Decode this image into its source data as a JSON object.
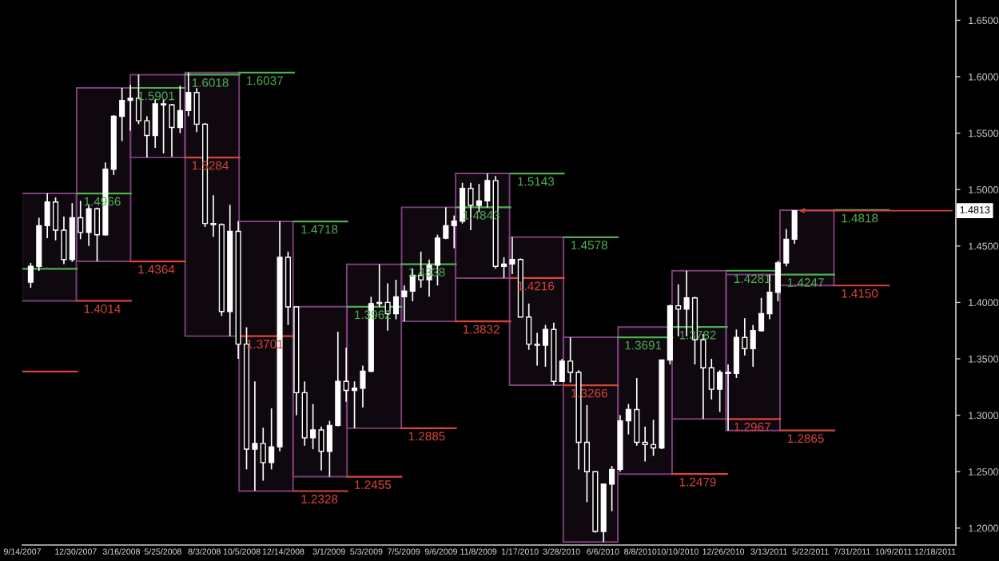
{
  "chart_data": {
    "type": "candlestick",
    "xlim": [
      "2007-10-01",
      "2012-01-22"
    ],
    "ylim": [
      1.185,
      1.668
    ],
    "xticks": [
      {
        "value": "2007-10-01",
        "label": "9/14/2007"
      },
      {
        "value": "2007-12-30",
        "label": "12/30/2007"
      },
      {
        "value": "2008-03-16",
        "label": "3/16/2008"
      },
      {
        "value": "2008-05-25",
        "label": "5/25/2008"
      },
      {
        "value": "2008-08-03",
        "label": "8/3/2008"
      },
      {
        "value": "2008-10-05",
        "label": "10/5/2008"
      },
      {
        "value": "2008-12-14",
        "label": "12/14/2008"
      },
      {
        "value": "2009-03-01",
        "label": "3/1/2009"
      },
      {
        "value": "2009-05-03",
        "label": "5/3/2009"
      },
      {
        "value": "2009-07-05",
        "label": "7/5/2009"
      },
      {
        "value": "2009-09-06",
        "label": "9/6/2009"
      },
      {
        "value": "2009-11-08",
        "label": "11/8/2009"
      },
      {
        "value": "2010-01-17",
        "label": "1/17/2010"
      },
      {
        "value": "2010-03-28",
        "label": "3/28/2010"
      },
      {
        "value": "2010-06-06",
        "label": "6/6/2010"
      },
      {
        "value": "2010-08-08",
        "label": "8/8/2010"
      },
      {
        "value": "2010-10-10",
        "label": "10/10/2010"
      },
      {
        "value": "2010-12-26",
        "label": "12/26/2010"
      },
      {
        "value": "2011-03-13",
        "label": "3/13/2011"
      },
      {
        "value": "2011-05-22",
        "label": "5/22/2011"
      },
      {
        "value": "2011-07-31",
        "label": "7/31/2011"
      },
      {
        "value": "2011-10-09",
        "label": "10/9/2011"
      },
      {
        "value": "2011-12-18",
        "label": "12/18/2011"
      }
    ],
    "yticks": [
      {
        "value": 1.2,
        "label": "1.2000"
      },
      {
        "value": 1.25,
        "label": "1.2500"
      },
      {
        "value": 1.3,
        "label": "1.3000"
      },
      {
        "value": 1.35,
        "label": "1.3500"
      },
      {
        "value": 1.4,
        "label": "1.4000"
      },
      {
        "value": 1.45,
        "label": "1.4500"
      },
      {
        "value": 1.5,
        "label": "1.5000"
      },
      {
        "value": 1.55,
        "label": "1.5500"
      },
      {
        "value": 1.6,
        "label": "1.6000"
      },
      {
        "value": 1.65,
        "label": "1.6500"
      }
    ],
    "annotations": [
      {
        "text": "1.4813",
        "x": "2011-04-25",
        "y": 1.4813
      }
    ],
    "series": [
      {
        "type": "bar",
        "color": "#7b3f7b",
        "x": [
          "2007-11-15",
          "2008-02-15",
          "2008-05-16",
          "2008-08-16",
          "2008-11-15",
          "2009-02-14",
          "2009-05-16",
          "2009-08-16",
          "2009-11-15",
          "2010-02-14",
          "2010-05-16",
          "2010-08-16",
          "2010-11-15",
          "2011-02-14",
          "2011-05-16"
        ],
        "base": [
          1.4014,
          1.4364,
          1.5284,
          1.3701,
          1.2328,
          1.2455,
          1.2885,
          1.3832,
          1.4216,
          1.3266,
          1.1876,
          1.2479,
          1.2967,
          1.2865,
          1.415
        ],
        "values": [
          0.0952,
          0.1537,
          0.0734,
          0.2336,
          0.239,
          0.1507,
          0.1453,
          0.1011,
          0.0927,
          0.1312,
          0.1815,
          0.1303,
          0.1314,
          0.1382,
          0.0668
        ]
      },
      {
        "type": "line",
        "color": "#4caf50",
        "x": [
          "2007-10-01",
          "2008-01-01",
          null,
          "2008-01-01",
          "2008-04-01",
          null,
          "2008-04-01",
          "2008-07-01",
          null,
          "2008-07-01",
          "2008-10-01",
          null,
          "2008-10-01",
          "2009-01-01",
          null,
          "2009-01-01",
          "2009-04-01",
          null,
          "2009-04-01",
          "2009-07-01",
          null,
          "2009-07-01",
          "2009-10-01",
          null,
          "2009-10-01",
          "2010-01-01",
          null,
          "2010-01-01",
          "2010-04-01",
          null,
          "2010-04-01",
          "2010-07-01",
          null,
          "2010-07-01",
          "2010-10-01",
          null,
          "2010-10-01",
          "2011-01-01",
          null,
          "2011-01-01",
          "2011-04-01",
          null,
          "2011-04-01",
          "2011-07-01",
          null,
          "2011-07-01",
          "2011-10-01"
        ],
        "values": [
          1.4297,
          1.4297,
          null,
          1.4966,
          1.4966,
          null,
          1.5901,
          1.5901,
          null,
          1.6018,
          1.6018,
          null,
          1.6037,
          1.6037,
          null,
          1.4718,
          1.4718,
          null,
          1.3962,
          1.3962,
          null,
          1.4338,
          1.4338,
          null,
          1.4843,
          1.4843,
          null,
          1.5143,
          1.5143,
          null,
          1.4578,
          1.4578,
          null,
          1.3691,
          1.3691,
          null,
          1.3782,
          1.3782,
          null,
          1.4281,
          1.4281,
          null,
          1.4247,
          1.4247,
          null,
          1.4818,
          1.4818
        ],
        "value_labels": [
          null,
          null,
          null,
          "1.4966",
          null,
          null,
          "1.5901",
          null,
          null,
          "1.6018",
          null,
          null,
          "1.6037",
          null,
          null,
          "1.4718",
          null,
          null,
          "1.3962",
          null,
          null,
          "1.4338",
          null,
          null,
          "1.4843",
          null,
          null,
          "1.5143",
          null,
          null,
          "1.4578",
          null,
          null,
          "1.3691",
          null,
          null,
          "1.3782",
          null,
          null,
          "1.4281",
          null,
          null,
          "1.4247",
          null,
          null,
          "1.4818",
          null
        ]
      },
      {
        "type": "line",
        "color": "#d9443a",
        "x": [
          "2007-10-01",
          "2008-01-01",
          null,
          "2008-01-01",
          "2008-04-01",
          null,
          "2008-04-01",
          "2008-07-01",
          null,
          "2008-07-01",
          "2008-10-01",
          null,
          "2008-10-01",
          "2009-01-01",
          null,
          "2009-01-01",
          "2009-04-01",
          null,
          "2009-04-01",
          "2009-07-01",
          null,
          "2009-07-01",
          "2009-10-01",
          null,
          "2009-10-01",
          "2010-01-01",
          null,
          "2010-01-01",
          "2010-04-01",
          null,
          "2010-04-01",
          "2010-07-01",
          null,
          null,
          "2010-10-01",
          "2011-01-01",
          null,
          "2011-01-01",
          "2011-04-01",
          null,
          "2011-04-01",
          "2011-07-01",
          null,
          "2011-07-01",
          "2011-10-01"
        ],
        "values": [
          1.3387,
          1.3387,
          null,
          1.4014,
          1.4014,
          null,
          1.4364,
          1.4364,
          null,
          1.5284,
          1.5284,
          null,
          1.3701,
          1.3701,
          null,
          1.2328,
          1.2328,
          null,
          1.2455,
          1.2455,
          null,
          1.2885,
          1.2885,
          null,
          1.3832,
          1.3832,
          null,
          1.4216,
          1.4216,
          null,
          1.3266,
          1.3266,
          null,
          null,
          1.2479,
          1.2479,
          null,
          1.2967,
          1.2967,
          null,
          1.2865,
          1.2865,
          null,
          1.415,
          1.415
        ],
        "value_labels": [
          null,
          null,
          null,
          "1.4014",
          null,
          null,
          "1.4364",
          null,
          null,
          "1.5284",
          null,
          null,
          "1.3701",
          null,
          null,
          "1.2328",
          null,
          null,
          "1.2455",
          null,
          null,
          "1.2885",
          null,
          null,
          "1.3832",
          null,
          null,
          "1.4216",
          null,
          null,
          "1.3266",
          null,
          null,
          null,
          "1.2479",
          null,
          null,
          "1.2967",
          null,
          null,
          "1.2865",
          null,
          null,
          "1.4150",
          null
        ]
      },
      {
        "color": "#ffffff",
        "x": [
          "2007-10-15",
          "2007-10-29",
          "2007-11-12",
          "2007-11-26",
          "2007-12-10",
          "2007-12-24",
          "2008-01-07",
          "2008-01-21",
          "2008-02-04",
          "2008-02-18",
          "2008-03-03",
          "2008-03-17",
          "2008-03-31",
          "2008-04-14",
          "2008-04-28",
          "2008-05-12",
          "2008-05-26",
          "2008-06-09",
          "2008-06-23",
          "2008-07-07",
          "2008-07-21",
          "2008-08-04",
          "2008-08-18",
          "2008-09-01",
          "2008-09-15",
          "2008-09-29",
          "2008-10-13",
          "2008-10-27",
          "2008-11-10",
          "2008-11-24",
          "2008-12-08",
          "2008-12-22",
          "2009-01-05",
          "2009-01-19",
          "2009-02-02",
          "2009-02-16",
          "2009-03-02",
          "2009-03-16",
          "2009-03-30",
          "2009-04-13",
          "2009-04-27",
          "2009-05-11",
          "2009-05-25",
          "2009-06-08",
          "2009-06-22",
          "2009-07-06",
          "2009-07-20",
          "2009-08-03",
          "2009-08-17",
          "2009-08-31",
          "2009-09-14",
          "2009-09-28",
          "2009-10-12",
          "2009-10-26",
          "2009-11-09",
          "2009-11-23",
          "2009-12-07",
          "2009-12-21",
          "2010-01-04",
          "2010-01-18",
          "2010-02-01",
          "2010-02-15",
          "2010-03-01",
          "2010-03-15",
          "2010-03-29",
          "2010-04-12",
          "2010-04-26",
          "2010-05-10",
          "2010-05-24",
          "2010-06-07",
          "2010-06-21",
          "2010-07-05",
          "2010-07-19",
          "2010-08-02",
          "2010-08-16",
          "2010-08-30",
          "2010-09-13",
          "2010-09-27",
          "2010-10-11",
          "2010-10-25",
          "2010-11-08",
          "2010-11-22",
          "2010-12-06",
          "2010-12-20",
          "2011-01-03",
          "2011-01-17",
          "2011-01-31",
          "2011-02-14",
          "2011-02-28",
          "2011-03-14",
          "2011-03-28",
          "2011-04-11",
          "2011-04-25"
        ],
        "ohlc": [
          [
            1.418,
            1.435,
            1.413,
            1.432
          ],
          [
            1.432,
            1.475,
            1.428,
            1.468
          ],
          [
            1.468,
            1.4966,
            1.457,
            1.489
          ],
          [
            1.489,
            1.493,
            1.455,
            1.464
          ],
          [
            1.464,
            1.476,
            1.434,
            1.438
          ],
          [
            1.438,
            1.488,
            1.436,
            1.475
          ],
          [
            1.475,
            1.49,
            1.456,
            1.462
          ],
          [
            1.462,
            1.487,
            1.45,
            1.483
          ],
          [
            1.483,
            1.484,
            1.4364,
            1.46
          ],
          [
            1.46,
            1.524,
            1.459,
            1.518
          ],
          [
            1.518,
            1.566,
            1.513,
            1.565
          ],
          [
            1.565,
            1.5901,
            1.543,
            1.579
          ],
          [
            1.579,
            1.593,
            1.552,
            1.581
          ],
          [
            1.581,
            1.6018,
            1.558,
            1.561
          ],
          [
            1.561,
            1.565,
            1.5284,
            1.548
          ],
          [
            1.548,
            1.58,
            1.537,
            1.576
          ],
          [
            1.576,
            1.58,
            1.532,
            1.575
          ],
          [
            1.575,
            1.576,
            1.529,
            1.555
          ],
          [
            1.555,
            1.592,
            1.55,
            1.57
          ],
          [
            1.57,
            1.6037,
            1.565,
            1.586
          ],
          [
            1.586,
            1.59,
            1.551,
            1.558
          ],
          [
            1.558,
            1.559,
            1.467,
            1.47
          ],
          [
            1.47,
            1.495,
            1.458,
            1.469
          ],
          [
            1.469,
            1.47,
            1.388,
            1.392
          ],
          [
            1.392,
            1.4865,
            1.3701,
            1.463
          ],
          [
            1.463,
            1.472,
            1.35,
            1.363
          ],
          [
            1.363,
            1.378,
            1.252,
            1.27
          ],
          [
            1.27,
            1.33,
            1.233,
            1.275
          ],
          [
            1.275,
            1.289,
            1.242,
            1.258
          ],
          [
            1.258,
            1.306,
            1.252,
            1.272
          ],
          [
            1.272,
            1.4718,
            1.268,
            1.44
          ],
          [
            1.44,
            1.445,
            1.38,
            1.396
          ],
          [
            1.396,
            1.3962,
            1.3,
            1.32
          ],
          [
            1.32,
            1.33,
            1.273,
            1.28
          ],
          [
            1.28,
            1.31,
            1.27,
            1.287
          ],
          [
            1.287,
            1.29,
            1.251,
            1.268
          ],
          [
            1.268,
            1.295,
            1.2455,
            1.291
          ],
          [
            1.291,
            1.374,
            1.29,
            1.33
          ],
          [
            1.33,
            1.36,
            1.312,
            1.322
          ],
          [
            1.322,
            1.33,
            1.2885,
            1.324
          ],
          [
            1.324,
            1.344,
            1.307,
            1.339
          ],
          [
            1.339,
            1.405,
            1.338,
            1.399
          ],
          [
            1.399,
            1.4338,
            1.396,
            1.4
          ],
          [
            1.4,
            1.417,
            1.375,
            1.39
          ],
          [
            1.39,
            1.42,
            1.385,
            1.405
          ],
          [
            1.405,
            1.415,
            1.3832,
            1.41
          ],
          [
            1.41,
            1.43,
            1.401,
            1.424
          ],
          [
            1.424,
            1.445,
            1.413,
            1.42
          ],
          [
            1.42,
            1.438,
            1.405,
            1.433
          ],
          [
            1.433,
            1.46,
            1.415,
            1.457
          ],
          [
            1.457,
            1.4843,
            1.456,
            1.468
          ],
          [
            1.468,
            1.477,
            1.448,
            1.472
          ],
          [
            1.472,
            1.506,
            1.47,
            1.501
          ],
          [
            1.501,
            1.506,
            1.464,
            1.486
          ],
          [
            1.486,
            1.505,
            1.48,
            1.49
          ],
          [
            1.49,
            1.5143,
            1.484,
            1.508
          ],
          [
            1.508,
            1.512,
            1.43,
            1.432
          ],
          [
            1.432,
            1.44,
            1.4216,
            1.434
          ],
          [
            1.434,
            1.4578,
            1.425,
            1.438
          ],
          [
            1.438,
            1.439,
            1.387,
            1.387
          ],
          [
            1.387,
            1.399,
            1.358,
            1.363
          ],
          [
            1.363,
            1.373,
            1.344,
            1.362
          ],
          [
            1.362,
            1.38,
            1.343,
            1.376
          ],
          [
            1.376,
            1.382,
            1.3266,
            1.33
          ],
          [
            1.33,
            1.35,
            1.33,
            1.348
          ],
          [
            1.348,
            1.3691,
            1.329,
            1.338
          ],
          [
            1.338,
            1.34,
            1.252,
            1.276
          ],
          [
            1.276,
            1.309,
            1.223,
            1.25
          ],
          [
            1.25,
            1.25,
            1.196,
            1.197
          ],
          [
            1.197,
            1.239,
            1.1876,
            1.239
          ],
          [
            1.239,
            1.255,
            1.215,
            1.252
          ],
          [
            1.252,
            1.3,
            1.25,
            1.295
          ],
          [
            1.295,
            1.31,
            1.283,
            1.305
          ],
          [
            1.305,
            1.333,
            1.273,
            1.276
          ],
          [
            1.276,
            1.29,
            1.259,
            1.274
          ],
          [
            1.274,
            1.296,
            1.264,
            1.271
          ],
          [
            1.271,
            1.349,
            1.27,
            1.349
          ],
          [
            1.349,
            1.398,
            1.345,
            1.397
          ],
          [
            1.397,
            1.416,
            1.37,
            1.394
          ],
          [
            1.394,
            1.4281,
            1.37,
            1.404
          ],
          [
            1.404,
            1.405,
            1.345,
            1.367
          ],
          [
            1.367,
            1.372,
            1.2967,
            1.342
          ],
          [
            1.342,
            1.35,
            1.314,
            1.323
          ],
          [
            1.323,
            1.34,
            1.303,
            1.338
          ],
          [
            1.338,
            1.345,
            1.2865,
            1.337
          ],
          [
            1.337,
            1.376,
            1.333,
            1.369
          ],
          [
            1.369,
            1.386,
            1.353,
            1.359
          ],
          [
            1.359,
            1.38,
            1.343,
            1.375
          ],
          [
            1.375,
            1.404,
            1.374,
            1.39
          ],
          [
            1.39,
            1.4247,
            1.385,
            1.409
          ],
          [
            1.409,
            1.437,
            1.401,
            1.435
          ],
          [
            1.435,
            1.465,
            1.432,
            1.456
          ],
          [
            1.456,
            1.4818,
            1.452,
            1.4813
          ]
        ]
      }
    ]
  }
}
